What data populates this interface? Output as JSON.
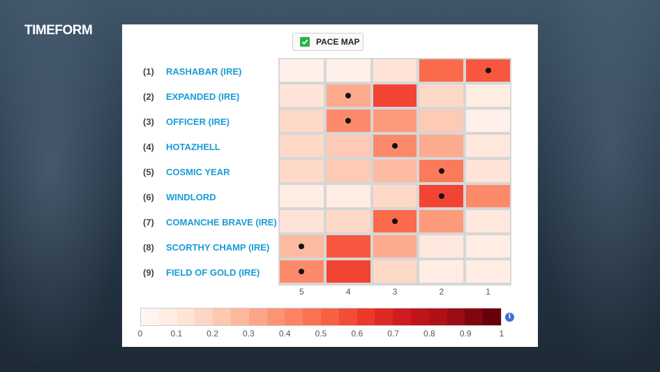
{
  "brand": {
    "logo_text": "TIMEFORM"
  },
  "toggle": {
    "label": "PACE MAP",
    "checked": true
  },
  "runners": [
    {
      "num": "(1)",
      "name": "RASHABAR (IRE)"
    },
    {
      "num": "(2)",
      "name": "EXPANDED (IRE)"
    },
    {
      "num": "(3)",
      "name": "OFFICER (IRE)"
    },
    {
      "num": "(4)",
      "name": "HOTAZHELL"
    },
    {
      "num": "(5)",
      "name": "COSMIC YEAR"
    },
    {
      "num": "(6)",
      "name": "WINDLORD"
    },
    {
      "num": "(7)",
      "name": "COMANCHE BRAVE (IRE)"
    },
    {
      "num": "(8)",
      "name": "SCORTHY CHAMP (IRE)"
    },
    {
      "num": "(9)",
      "name": "FIELD OF GOLD (IRE)"
    }
  ],
  "chart_data": {
    "type": "heatmap",
    "x": [
      "5",
      "4",
      "3",
      "2",
      "1"
    ],
    "y": [
      "RASHABAR (IRE)",
      "EXPANDED (IRE)",
      "OFFICER (IRE)",
      "HOTAZHELL",
      "COSMIC YEAR",
      "WINDLORD",
      "COMANCHE BRAVE (IRE)",
      "SCORTHY CHAMP (IRE)",
      "FIELD OF GOLD (IRE)"
    ],
    "values": [
      [
        0.03,
        0.03,
        0.1,
        0.5,
        0.55
      ],
      [
        0.1,
        0.3,
        0.6,
        0.15,
        0.05
      ],
      [
        0.15,
        0.4,
        0.35,
        0.2,
        0.03
      ],
      [
        0.15,
        0.2,
        0.4,
        0.3,
        0.08
      ],
      [
        0.15,
        0.2,
        0.25,
        0.45,
        0.1
      ],
      [
        0.05,
        0.05,
        0.15,
        0.6,
        0.4
      ],
      [
        0.1,
        0.15,
        0.5,
        0.35,
        0.08
      ],
      [
        0.25,
        0.55,
        0.3,
        0.08,
        0.05
      ],
      [
        0.4,
        0.6,
        0.15,
        0.05,
        0.05
      ]
    ],
    "marked": [
      4,
      1,
      1,
      2,
      3,
      3,
      2,
      0,
      0
    ],
    "colorbar": {
      "min": 0,
      "max": 1,
      "ticks": [
        "0",
        "0.1",
        "0.2",
        "0.3",
        "0.4",
        "0.5",
        "0.6",
        "0.7",
        "0.8",
        "0.9",
        "1"
      ]
    },
    "colors": {
      "low": "#fff5f0",
      "high": "#67000d"
    }
  }
}
